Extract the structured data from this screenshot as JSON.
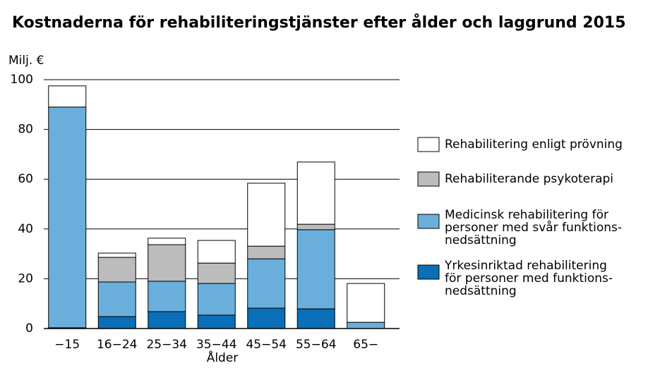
{
  "chart_data": {
    "type": "stacked_bar",
    "title": "Kostnaderna för rehabiliteringstjänster efter ålder och laggrund 2015",
    "y_label": "Milj. €",
    "x_label": "Ålder",
    "categories": [
      "−15",
      "16−24",
      "25−34",
      "35−44",
      "45−54",
      "55−64",
      "65−"
    ],
    "series": [
      {
        "name": "Yrkesinriktad rehabilitering\nför personer med funktions-\nnedsättning",
        "color": "#0a6fb7",
        "values": [
          0.3,
          4.8,
          6.8,
          5.4,
          8.2,
          7.9,
          0
        ]
      },
      {
        "name": "Medicinsk rehabilitering för\npersoner med svår funktions-\nnedsättning",
        "color": "#6aafdc",
        "values": [
          88.7,
          13.9,
          12.2,
          12.7,
          19.8,
          31.8,
          2.5
        ]
      },
      {
        "name": "Rehabiliterande psykoterapi",
        "color": "#bcbcbd",
        "values": [
          0,
          9.9,
          14.7,
          8.2,
          5.1,
          2.2,
          0
        ]
      },
      {
        "name": "Rehabilitering enligt prövning",
        "color": "#ffffff",
        "values": [
          8.5,
          1.7,
          2.6,
          9.1,
          25.3,
          25,
          15.6
        ]
      }
    ],
    "ylim": [
      0,
      100
    ],
    "yticks": [
      0,
      20,
      40,
      60,
      80,
      100
    ],
    "grid": true,
    "legend": "right"
  }
}
